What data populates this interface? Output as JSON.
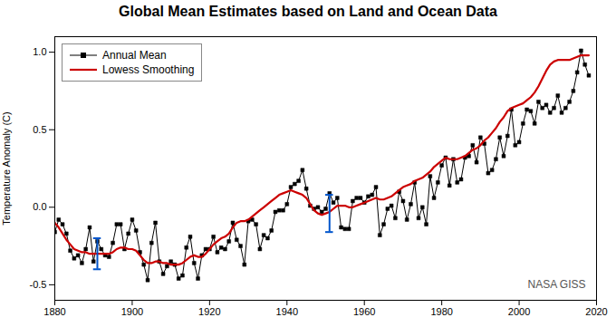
{
  "chart_data": {
    "type": "line",
    "title": "Global Mean Estimates based on Land and Ocean Data",
    "ylabel": "Temperature Anomaly (C)",
    "x": [
      1880,
      1881,
      1882,
      1883,
      1884,
      1885,
      1886,
      1887,
      1888,
      1889,
      1890,
      1891,
      1892,
      1893,
      1894,
      1895,
      1896,
      1897,
      1898,
      1899,
      1900,
      1901,
      1902,
      1903,
      1904,
      1905,
      1906,
      1907,
      1908,
      1909,
      1910,
      1911,
      1912,
      1913,
      1914,
      1915,
      1916,
      1917,
      1918,
      1919,
      1920,
      1921,
      1922,
      1923,
      1924,
      1925,
      1926,
      1927,
      1928,
      1929,
      1930,
      1931,
      1932,
      1933,
      1934,
      1935,
      1936,
      1937,
      1938,
      1939,
      1940,
      1941,
      1942,
      1943,
      1944,
      1945,
      1946,
      1947,
      1948,
      1949,
      1950,
      1951,
      1952,
      1953,
      1954,
      1955,
      1956,
      1957,
      1958,
      1959,
      1960,
      1961,
      1962,
      1963,
      1964,
      1965,
      1966,
      1967,
      1968,
      1969,
      1970,
      1971,
      1972,
      1973,
      1974,
      1975,
      1976,
      1977,
      1978,
      1979,
      1980,
      1981,
      1982,
      1983,
      1984,
      1985,
      1986,
      1987,
      1988,
      1989,
      1990,
      1991,
      1992,
      1993,
      1994,
      1995,
      1996,
      1997,
      1998,
      1999,
      2000,
      2001,
      2002,
      2003,
      2004,
      2005,
      2006,
      2007,
      2008,
      2009,
      2010,
      2011,
      2012,
      2013,
      2014,
      2015,
      2016,
      2017,
      2018
    ],
    "series": [
      {
        "name": "Annual Mean",
        "color": "#000000",
        "marker": "square",
        "values": [
          -0.16,
          -0.08,
          -0.11,
          -0.17,
          -0.28,
          -0.33,
          -0.31,
          -0.36,
          -0.27,
          -0.13,
          -0.35,
          -0.22,
          -0.27,
          -0.31,
          -0.32,
          -0.23,
          -0.11,
          -0.11,
          -0.27,
          -0.17,
          -0.08,
          -0.15,
          -0.29,
          -0.37,
          -0.47,
          -0.23,
          -0.1,
          -0.35,
          -0.43,
          -0.38,
          -0.35,
          -0.37,
          -0.46,
          -0.44,
          -0.26,
          -0.19,
          -0.36,
          -0.46,
          -0.31,
          -0.27,
          -0.27,
          -0.19,
          -0.29,
          -0.26,
          -0.27,
          -0.22,
          -0.1,
          -0.21,
          -0.25,
          -0.37,
          -0.09,
          -0.08,
          -0.11,
          -0.27,
          -0.18,
          -0.2,
          -0.15,
          -0.03,
          -0.02,
          -0.02,
          0.02,
          0.13,
          0.15,
          0.17,
          0.24,
          0.12,
          0.01,
          -0.01,
          0.0,
          -0.03,
          -0.01,
          0.09,
          0.03,
          0.06,
          -0.13,
          -0.14,
          -0.14,
          0.04,
          0.06,
          0.06,
          0.03,
          0.07,
          0.08,
          0.13,
          -0.18,
          -0.11,
          -0.01,
          0.01,
          -0.07,
          0.1,
          0.04,
          -0.08,
          0.02,
          0.16,
          -0.07,
          0.0,
          -0.11,
          0.2,
          0.06,
          0.16,
          0.27,
          0.32,
          0.14,
          0.31,
          0.16,
          0.18,
          0.32,
          0.33,
          0.4,
          0.29,
          0.45,
          0.41,
          0.22,
          0.24,
          0.31,
          0.45,
          0.33,
          0.46,
          0.63,
          0.4,
          0.42,
          0.54,
          0.63,
          0.62,
          0.54,
          0.68,
          0.64,
          0.66,
          0.61,
          0.64,
          0.72,
          0.61,
          0.64,
          0.68,
          0.75,
          0.87,
          1.01,
          0.92,
          0.85
        ]
      },
      {
        "name": "Lowess Smoothing",
        "color": "#cc0000",
        "values": [
          -0.1,
          -0.13,
          -0.17,
          -0.21,
          -0.24,
          -0.27,
          -0.28,
          -0.29,
          -0.29,
          -0.3,
          -0.3,
          -0.3,
          -0.3,
          -0.3,
          -0.3,
          -0.29,
          -0.27,
          -0.26,
          -0.26,
          -0.27,
          -0.27,
          -0.28,
          -0.31,
          -0.34,
          -0.36,
          -0.36,
          -0.35,
          -0.35,
          -0.36,
          -0.36,
          -0.37,
          -0.37,
          -0.37,
          -0.36,
          -0.34,
          -0.32,
          -0.31,
          -0.32,
          -0.32,
          -0.3,
          -0.27,
          -0.24,
          -0.22,
          -0.2,
          -0.19,
          -0.17,
          -0.13,
          -0.1,
          -0.09,
          -0.09,
          -0.08,
          -0.06,
          -0.04,
          -0.02,
          0.0,
          0.02,
          0.04,
          0.06,
          0.08,
          0.09,
          0.1,
          0.11,
          0.1,
          0.09,
          0.08,
          0.06,
          0.02,
          -0.02,
          -0.04,
          -0.05,
          -0.04,
          -0.03,
          -0.01,
          0.01,
          0.01,
          0.01,
          0.0,
          0.0,
          0.01,
          0.02,
          0.03,
          0.04,
          0.05,
          0.06,
          0.05,
          0.05,
          0.06,
          0.07,
          0.09,
          0.11,
          0.13,
          0.14,
          0.15,
          0.17,
          0.18,
          0.19,
          0.21,
          0.23,
          0.26,
          0.28,
          0.3,
          0.32,
          0.31,
          0.31,
          0.31,
          0.32,
          0.33,
          0.35,
          0.37,
          0.38,
          0.4,
          0.43,
          0.45,
          0.48,
          0.51,
          0.55,
          0.58,
          0.62,
          0.64,
          0.65,
          0.66,
          0.67,
          0.69,
          0.71,
          0.74,
          0.78,
          0.83,
          0.88,
          0.92,
          0.94,
          0.95,
          0.95,
          0.95,
          0.95,
          0.96,
          0.97,
          0.98,
          0.98,
          0.98
        ]
      }
    ],
    "error_bars": [
      {
        "x": 1891,
        "value": -0.3,
        "error": 0.1,
        "color": "#0055cc"
      },
      {
        "x": 1951,
        "value": -0.04,
        "error": 0.12,
        "color": "#0055cc"
      }
    ],
    "annotations": [
      {
        "text": "NASA GISS"
      }
    ],
    "xlim": [
      1880,
      2020
    ],
    "ylim": [
      -0.6,
      1.1
    ],
    "xticks": [
      1880,
      1900,
      1920,
      1940,
      1960,
      1980,
      2000,
      2020
    ],
    "yticks": [
      -0.5,
      {
        "value": 0,
        "label": "0.0"
      },
      0.5,
      {
        "value": 1,
        "label": "1.0"
      }
    ],
    "grid": false,
    "legend": "upper left"
  }
}
